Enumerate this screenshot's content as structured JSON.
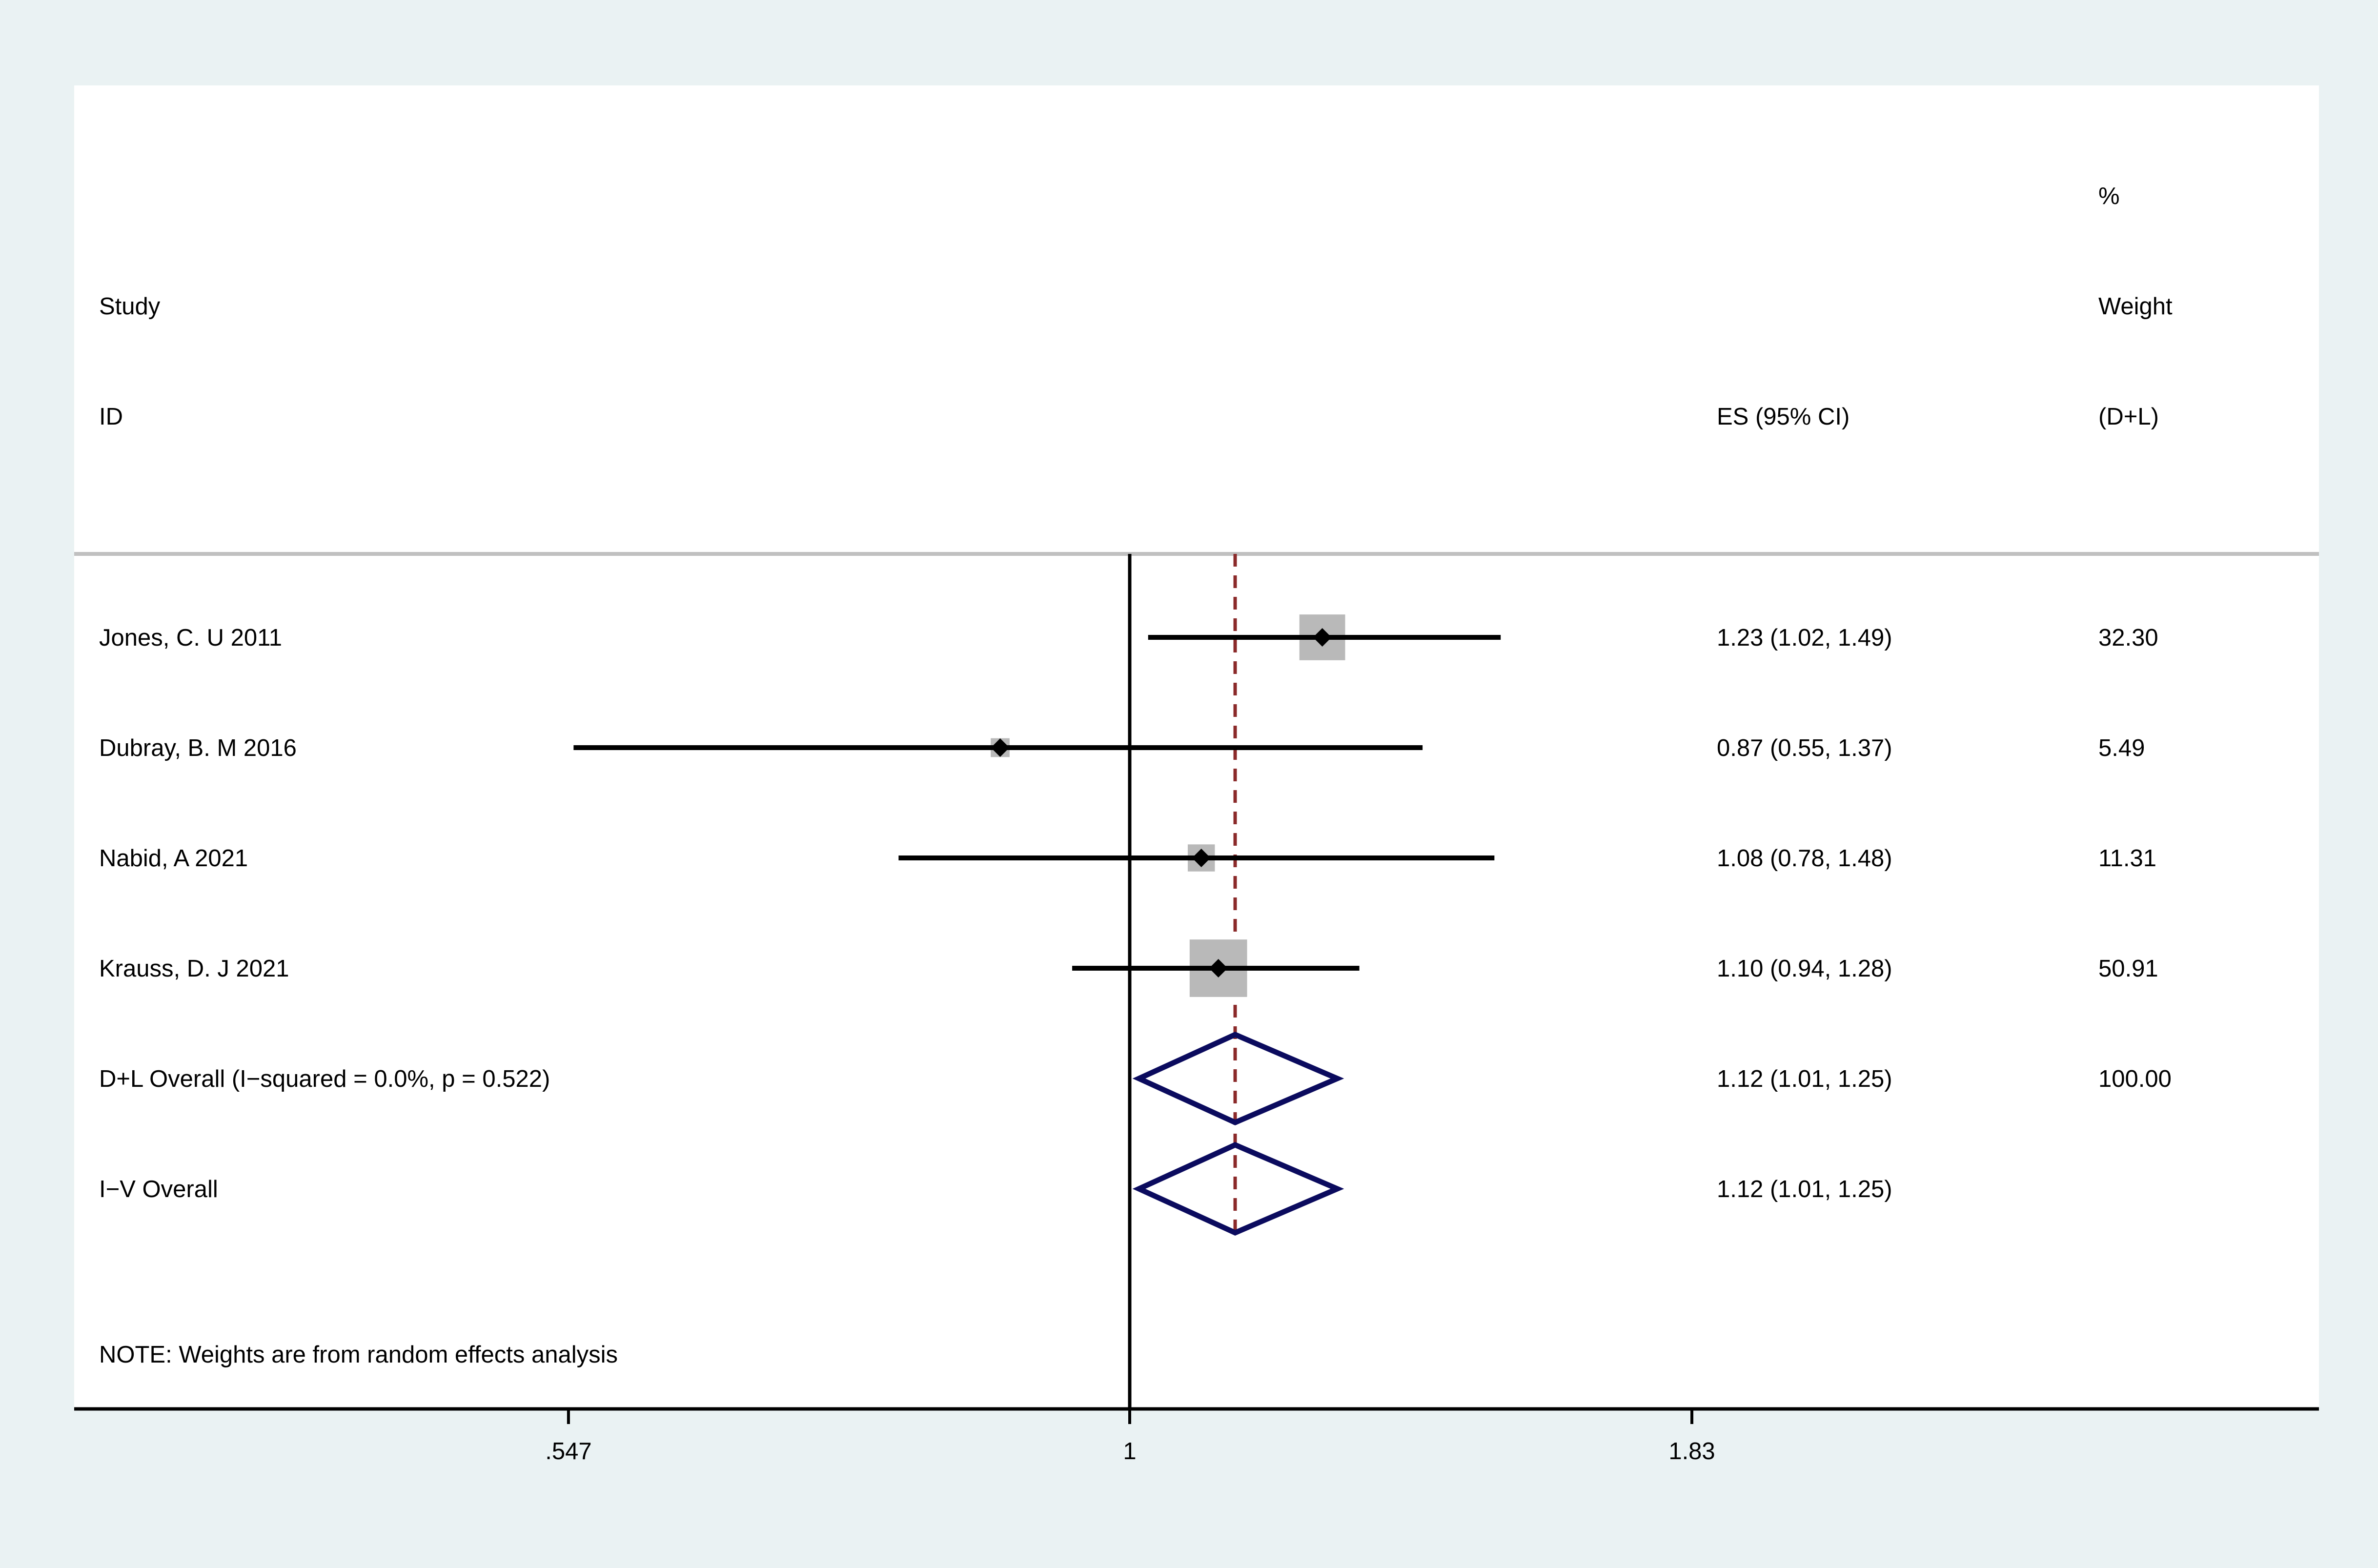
{
  "header": {
    "study": "Study",
    "id": "ID",
    "es": "ES (95% CI)",
    "weight_pct": "%",
    "weight": "Weight",
    "weight_method": "(D+L)"
  },
  "note": "NOTE: Weights are from random effects analysis",
  "colors": {
    "background": "#eaf2f3",
    "panel": "#ffffff",
    "box": "#b9b9b9",
    "diamond": "#0b0b5e",
    "overall_line": "#8b2a2a"
  },
  "chart_data": {
    "type": "forest",
    "x_scale": "log",
    "xlim": [
      0.547,
      1.83
    ],
    "xticks": [
      {
        "value": 0.547,
        "label": ".547"
      },
      {
        "value": 1,
        "label": "1"
      },
      {
        "value": 1.83,
        "label": "1.83"
      }
    ],
    "null_line": 1,
    "overall_line": 1.12,
    "studies": [
      {
        "label": "Jones, C. U 2011",
        "es": 1.23,
        "lo": 1.02,
        "hi": 1.49,
        "es_text": "1.23 (1.02, 1.49)",
        "weight": 32.3,
        "weight_text": "32.30"
      },
      {
        "label": "Dubray, B. M 2016",
        "es": 0.87,
        "lo": 0.55,
        "hi": 1.37,
        "es_text": "0.87 (0.55, 1.37)",
        "weight": 5.49,
        "weight_text": "5.49"
      },
      {
        "label": "Nabid, A 2021",
        "es": 1.08,
        "lo": 0.78,
        "hi": 1.48,
        "es_text": "1.08 (0.78, 1.48)",
        "weight": 11.31,
        "weight_text": "11.31"
      },
      {
        "label": "Krauss, D. J 2021",
        "es": 1.1,
        "lo": 0.94,
        "hi": 1.28,
        "es_text": "1.10 (0.94, 1.28)",
        "weight": 50.91,
        "weight_text": "50.91"
      }
    ],
    "overall": [
      {
        "label": "D+L Overall  (I−squared = 0.0%, p = 0.522)",
        "es": 1.12,
        "lo": 1.01,
        "hi": 1.25,
        "es_text": "1.12 (1.01, 1.25)",
        "weight_text": "100.00"
      },
      {
        "label": "I−V Overall",
        "es": 1.12,
        "lo": 1.01,
        "hi": 1.25,
        "es_text": "1.12 (1.01, 1.25)",
        "weight_text": ""
      }
    ]
  }
}
